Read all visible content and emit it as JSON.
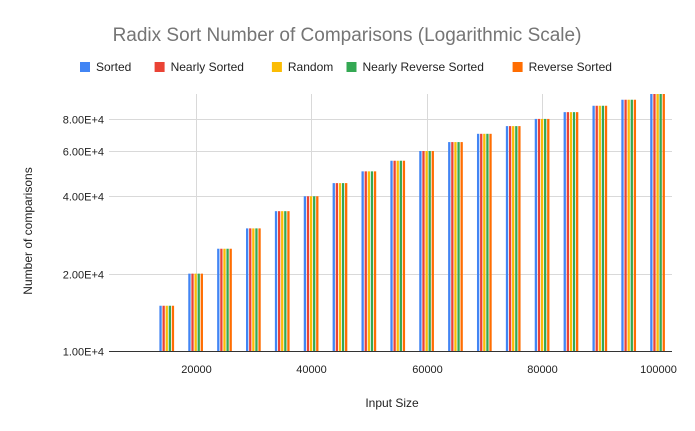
{
  "chart_data": {
    "type": "bar",
    "title": "Radix Sort Number of Comparisons (Logarithmic Scale)",
    "xlabel": "Input Size",
    "ylabel": "Number of comparisons",
    "y_scale": "log",
    "ylim": [
      10000,
      100000
    ],
    "xlim": [
      5000,
      102500
    ],
    "y_ticks": [
      10000,
      20000,
      40000,
      60000,
      80000
    ],
    "y_tick_labels": [
      "1.00E+4",
      "2.00E+4",
      "4.00E+4",
      "6.00E+4",
      "8.00E+4"
    ],
    "x_ticks": [
      20000,
      40000,
      60000,
      80000,
      100000
    ],
    "x_tick_labels": [
      "20000",
      "40000",
      "60000",
      "80000",
      "100000"
    ],
    "grid": true,
    "legend_position": "top",
    "x": [
      15000,
      20000,
      25000,
      30000,
      35000,
      40000,
      45000,
      50000,
      55000,
      60000,
      65000,
      70000,
      75000,
      80000,
      85000,
      90000,
      95000,
      100000
    ],
    "series": [
      {
        "name": "Sorted",
        "color": "#4285F4",
        "values": [
          15000,
          20000,
          25000,
          30000,
          35000,
          40000,
          45000,
          50000,
          55000,
          60000,
          65000,
          70000,
          75000,
          80000,
          85000,
          90000,
          95000,
          100000
        ]
      },
      {
        "name": "Nearly Sorted",
        "color": "#EA4335",
        "values": [
          15000,
          20000,
          25000,
          30000,
          35000,
          40000,
          45000,
          50000,
          55000,
          60000,
          65000,
          70000,
          75000,
          80000,
          85000,
          90000,
          95000,
          100000
        ]
      },
      {
        "name": "Random",
        "color": "#FBBC04",
        "values": [
          15000,
          20000,
          25000,
          30000,
          35000,
          40000,
          45000,
          50000,
          55000,
          60000,
          65000,
          70000,
          75000,
          80000,
          85000,
          90000,
          95000,
          100000
        ]
      },
      {
        "name": "Nearly Reverse Sorted",
        "color": "#34A853",
        "values": [
          15000,
          20000,
          25000,
          30000,
          35000,
          40000,
          45000,
          50000,
          55000,
          60000,
          65000,
          70000,
          75000,
          80000,
          85000,
          90000,
          95000,
          100000
        ]
      },
      {
        "name": "Reverse Sorted",
        "color": "#FF6D01",
        "values": [
          15000,
          20000,
          25000,
          30000,
          35000,
          40000,
          45000,
          50000,
          55000,
          60000,
          65000,
          70000,
          75000,
          80000,
          85000,
          90000,
          95000,
          100000
        ]
      }
    ]
  }
}
